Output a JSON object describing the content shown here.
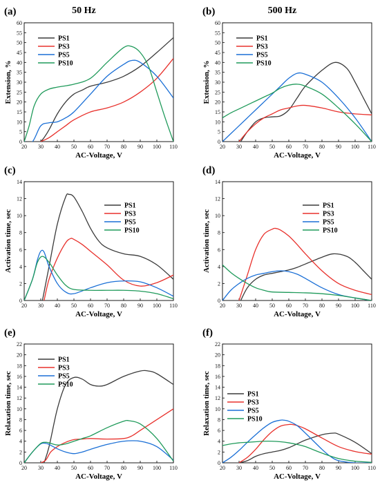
{
  "chart_data": [
    {
      "type": "line",
      "panel_label": "(a)",
      "title": "50 Hz",
      "xlabel": "AC-Voltage, V",
      "ylabel": "Extension, %",
      "xlim": [
        20,
        110
      ],
      "ylim": [
        0,
        60
      ],
      "xticks": [
        "20",
        "30",
        "40",
        "50",
        "60",
        "70",
        "80",
        "90",
        "100",
        "110"
      ],
      "yticks": [
        "0",
        "5",
        "10",
        "15",
        "20",
        "25",
        "30",
        "35",
        "40",
        "45",
        "50",
        "55",
        "60"
      ],
      "legend": "upper-left",
      "series": [
        {
          "name": "PS1",
          "color": "#3a3a3a",
          "x": [
            30,
            32,
            35,
            40,
            45,
            50,
            55,
            60,
            70,
            80,
            90,
            100,
            110
          ],
          "y": [
            0,
            2,
            6,
            14,
            20,
            24,
            26,
            28,
            30,
            33,
            38,
            45,
            52.5
          ]
        },
        {
          "name": "PS3",
          "color": "#e8302b",
          "x": [
            30,
            35,
            40,
            45,
            50,
            60,
            70,
            80,
            90,
            100,
            110
          ],
          "y": [
            0,
            2,
            5,
            8,
            11,
            15,
            17,
            20,
            25,
            32,
            42
          ]
        },
        {
          "name": "PS5",
          "color": "#1a6fd6",
          "x": [
            20,
            25,
            30,
            35,
            40,
            45,
            50,
            60,
            70,
            80,
            85,
            90,
            100,
            110
          ],
          "y": [
            0,
            0,
            8,
            9.5,
            10,
            12,
            15,
            24,
            33,
            39,
            41,
            40,
            33,
            22
          ]
        },
        {
          "name": "PS10",
          "color": "#1f9a5a",
          "x": [
            20,
            23,
            26,
            30,
            35,
            40,
            50,
            60,
            70,
            80,
            85,
            90,
            95,
            100,
            105,
            110
          ],
          "y": [
            0,
            8,
            18,
            24,
            26.5,
            27.5,
            29,
            32,
            40,
            47.5,
            48,
            45,
            38,
            25,
            12,
            0
          ]
        }
      ]
    },
    {
      "type": "line",
      "panel_label": "(b)",
      "title": "500 Hz",
      "xlabel": "AC-Voltage, V",
      "ylabel": "Extension, %",
      "xlim": [
        20,
        110
      ],
      "ylim": [
        0,
        60
      ],
      "xticks": [
        "20",
        "30",
        "40",
        "50",
        "60",
        "70",
        "80",
        "90",
        "100",
        "110"
      ],
      "yticks": [
        "0",
        "5",
        "10",
        "15",
        "20",
        "25",
        "30",
        "35",
        "40",
        "45",
        "50",
        "55",
        "60"
      ],
      "legend": "upper-left",
      "series": [
        {
          "name": "PS1",
          "color": "#3a3a3a",
          "x": [
            31,
            35,
            40,
            45,
            50,
            55,
            60,
            65,
            70,
            80,
            88,
            95,
            100,
            105,
            110
          ],
          "y": [
            0,
            5,
            10,
            12,
            12.5,
            13,
            16,
            22,
            28,
            36,
            40,
            37,
            30,
            22,
            14
          ]
        },
        {
          "name": "PS3",
          "color": "#e8302b",
          "x": [
            30,
            35,
            40,
            45,
            50,
            55,
            60,
            65,
            70,
            80,
            90,
            100,
            110
          ],
          "y": [
            0,
            5,
            9,
            12,
            14,
            16,
            17,
            18,
            18.3,
            17,
            15,
            14,
            13.5
          ]
        },
        {
          "name": "PS5",
          "color": "#1a6fd6",
          "x": [
            20,
            25,
            30,
            35,
            40,
            45,
            50,
            55,
            60,
            65,
            70,
            80,
            90,
            100,
            110
          ],
          "y": [
            0,
            4,
            8,
            12,
            16,
            20,
            24,
            28,
            32,
            34.5,
            34,
            30,
            22,
            12,
            0
          ]
        },
        {
          "name": "PS10",
          "color": "#1f9a5a",
          "x": [
            20,
            25,
            30,
            35,
            40,
            45,
            50,
            55,
            60,
            65,
            70,
            80,
            90,
            100,
            110
          ],
          "y": [
            12,
            14.5,
            16.5,
            18.5,
            20.5,
            22.5,
            24.5,
            27,
            28.5,
            29,
            28,
            24,
            17,
            9,
            0
          ]
        }
      ]
    },
    {
      "type": "line",
      "panel_label": "(c)",
      "xlabel": "AC-Voltage, V",
      "ylabel": "Activation time, sec",
      "xlim": [
        20,
        110
      ],
      "ylim": [
        0,
        14
      ],
      "xticks": [
        "20",
        "30",
        "40",
        "50",
        "60",
        "70",
        "80",
        "90",
        "100",
        "110"
      ],
      "yticks": [
        "0",
        "2",
        "4",
        "6",
        "8",
        "10",
        "12",
        "14"
      ],
      "legend": "upper-right",
      "series": [
        {
          "name": "PS1",
          "color": "#3a3a3a",
          "x": [
            31,
            35,
            40,
            45,
            47,
            50,
            55,
            60,
            65,
            70,
            80,
            90,
            100,
            110
          ],
          "y": [
            0,
            4,
            9,
            12.2,
            12.5,
            12.2,
            10.5,
            8.5,
            7,
            6.2,
            5.5,
            5.2,
            4.2,
            2.5
          ]
        },
        {
          "name": "PS3",
          "color": "#e8302b",
          "x": [
            32,
            35,
            40,
            45,
            48,
            50,
            55,
            60,
            70,
            80,
            90,
            100,
            110
          ],
          "y": [
            0,
            2.5,
            5,
            6.8,
            7.3,
            7.2,
            6.6,
            5.8,
            4.2,
            2.4,
            1.7,
            2.1,
            3.0
          ]
        },
        {
          "name": "PS5",
          "color": "#1a6fd6",
          "x": [
            20,
            25,
            28,
            30,
            32,
            35,
            40,
            45,
            50,
            60,
            70,
            80,
            90,
            100,
            110
          ],
          "y": [
            0,
            2.5,
            4.8,
            5.8,
            5.7,
            4,
            2,
            1,
            0.8,
            1.5,
            2.1,
            2.3,
            2.2,
            1.5,
            0.5
          ]
        },
        {
          "name": "PS10",
          "color": "#1f9a5a",
          "x": [
            20,
            25,
            28,
            31,
            35,
            40,
            45,
            50,
            60,
            70,
            80,
            90,
            100,
            110
          ],
          "y": [
            0,
            2.5,
            4.5,
            5.2,
            4.5,
            3,
            1.8,
            1.3,
            1.2,
            1.2,
            1.2,
            1.1,
            0.8,
            0.2
          ]
        }
      ]
    },
    {
      "type": "line",
      "panel_label": "(d)",
      "xlabel": "AC-Voltage, V",
      "ylabel": "Activation time, sec",
      "xlim": [
        20,
        110
      ],
      "ylim": [
        0,
        14
      ],
      "xticks": [
        "20",
        "30",
        "40",
        "50",
        "60",
        "70",
        "80",
        "90",
        "100",
        "110"
      ],
      "yticks": [
        "0",
        "2",
        "4",
        "6",
        "8",
        "10",
        "12",
        "14"
      ],
      "legend": "upper-right",
      "series": [
        {
          "name": "PS1",
          "color": "#3a3a3a",
          "x": [
            31,
            35,
            40,
            45,
            50,
            55,
            60,
            65,
            70,
            80,
            87,
            95,
            100,
            105,
            110
          ],
          "y": [
            0,
            1.5,
            2.5,
            3,
            3.2,
            3.4,
            3.6,
            3.9,
            4.3,
            5.1,
            5.5,
            5.2,
            4.5,
            3.5,
            2.5
          ]
        },
        {
          "name": "PS3",
          "color": "#e8302b",
          "x": [
            30,
            35,
            40,
            45,
            50,
            52,
            55,
            60,
            65,
            70,
            80,
            90,
            100,
            110
          ],
          "y": [
            0,
            3,
            6,
            7.8,
            8.4,
            8.5,
            8.3,
            7.6,
            6.6,
            5.5,
            3.5,
            2,
            1.2,
            0.7
          ]
        },
        {
          "name": "PS5",
          "color": "#1a6fd6",
          "x": [
            20,
            25,
            30,
            35,
            40,
            45,
            50,
            55,
            60,
            65,
            70,
            80,
            90,
            100,
            110
          ],
          "y": [
            0,
            1.2,
            2,
            2.6,
            3,
            3.2,
            3.4,
            3.5,
            3.4,
            3.1,
            2.6,
            1.5,
            0.7,
            0.3,
            0
          ]
        },
        {
          "name": "PS10",
          "color": "#1f9a5a",
          "x": [
            20,
            25,
            30,
            35,
            40,
            45,
            50,
            60,
            70,
            80,
            90,
            100,
            110
          ],
          "y": [
            4.2,
            3.3,
            2.6,
            2,
            1.5,
            1.2,
            1.0,
            0.95,
            0.9,
            0.8,
            0.6,
            0.3,
            0
          ]
        }
      ]
    },
    {
      "type": "line",
      "panel_label": "(e)",
      "xlabel": "AC-Voltage, V",
      "ylabel": "Relaxation time, sec",
      "xlim": [
        20,
        110
      ],
      "ylim": [
        0,
        22
      ],
      "xticks": [
        "20",
        "30",
        "40",
        "50",
        "60",
        "70",
        "80",
        "90",
        "100",
        "110"
      ],
      "yticks": [
        "0",
        "2",
        "4",
        "6",
        "8",
        "10",
        "12",
        "14",
        "16",
        "18",
        "20",
        "22"
      ],
      "legend": "upper-left",
      "series": [
        {
          "name": "PS1",
          "color": "#3a3a3a",
          "x": [
            32,
            35,
            40,
            45,
            50,
            55,
            60,
            65,
            70,
            80,
            90,
            95,
            100,
            110
          ],
          "y": [
            0,
            3,
            10,
            14.5,
            15.8,
            15.5,
            14.5,
            14.2,
            14.5,
            16,
            17,
            17,
            16.5,
            14.5
          ]
        },
        {
          "name": "PS3",
          "color": "#e8302b",
          "x": [
            30,
            33,
            36,
            40,
            45,
            50,
            55,
            60,
            70,
            80,
            85,
            90,
            100,
            110
          ],
          "y": [
            0,
            0.5,
            2,
            3,
            3.8,
            4.3,
            4.4,
            4.5,
            4.4,
            4.5,
            5,
            6,
            8,
            10
          ]
        },
        {
          "name": "PS5",
          "color": "#1a6fd6",
          "x": [
            20,
            25,
            30,
            33,
            35,
            40,
            45,
            50,
            55,
            60,
            70,
            80,
            90,
            100,
            110
          ],
          "y": [
            0,
            2,
            3.5,
            3.6,
            3.4,
            2.6,
            2,
            1.7,
            2,
            2.5,
            3.4,
            4,
            4,
            3,
            0.5
          ]
        },
        {
          "name": "PS10",
          "color": "#1f9a5a",
          "x": [
            20,
            25,
            30,
            33,
            35,
            40,
            45,
            50,
            55,
            60,
            70,
            80,
            83,
            90,
            100,
            110
          ],
          "y": [
            0,
            2,
            3.6,
            3.8,
            3.7,
            3.3,
            3.5,
            4,
            4.5,
            5,
            6.5,
            7.7,
            7.8,
            7.2,
            4.5,
            0.3
          ]
        }
      ]
    },
    {
      "type": "line",
      "panel_label": "(f)",
      "xlabel": "AC-Voltage, V",
      "ylabel": "Relaxation time, sec",
      "xlim": [
        20,
        110
      ],
      "ylim": [
        0,
        22
      ],
      "xticks": [
        "20",
        "30",
        "40",
        "50",
        "60",
        "70",
        "80",
        "90",
        "100",
        "110"
      ],
      "yticks": [
        "0",
        "2",
        "4",
        "6",
        "8",
        "10",
        "12",
        "14",
        "16",
        "18",
        "20",
        "22"
      ],
      "legend": "left",
      "series": [
        {
          "name": "PS1",
          "color": "#3a3a3a",
          "x": [
            30,
            35,
            40,
            45,
            50,
            55,
            60,
            65,
            70,
            80,
            87,
            90,
            100,
            110
          ],
          "y": [
            0,
            0.4,
            1.2,
            1.7,
            2,
            2.3,
            2.8,
            3.5,
            4.2,
            5.2,
            5.5,
            5.3,
            3.8,
            1.7
          ]
        },
        {
          "name": "PS3",
          "color": "#e8302b",
          "x": [
            30,
            35,
            40,
            45,
            50,
            55,
            60,
            62,
            65,
            70,
            80,
            90,
            100,
            110
          ],
          "y": [
            0,
            1,
            2.5,
            4.3,
            5.8,
            6.8,
            7.1,
            7.1,
            6.9,
            6.3,
            4.6,
            3,
            2.1,
            1.6
          ]
        },
        {
          "name": "PS5",
          "color": "#1a6fd6",
          "x": [
            20,
            25,
            30,
            35,
            40,
            45,
            50,
            55,
            57,
            60,
            65,
            70,
            80,
            85,
            90,
            100,
            110
          ],
          "y": [
            0,
            1,
            2.3,
            3.8,
            5.2,
            6.5,
            7.5,
            7.9,
            7.9,
            7.7,
            6.9,
            5.5,
            2.5,
            1.2,
            0.4,
            0,
            0
          ]
        },
        {
          "name": "PS10",
          "color": "#1f9a5a",
          "x": [
            20,
            25,
            30,
            35,
            40,
            45,
            50,
            55,
            60,
            65,
            70,
            80,
            90,
            100,
            110
          ],
          "y": [
            3.2,
            3.5,
            3.7,
            3.8,
            3.9,
            4,
            4,
            3.9,
            3.7,
            3.4,
            3,
            1.8,
            0.8,
            0.3,
            0.1
          ]
        }
      ]
    }
  ]
}
